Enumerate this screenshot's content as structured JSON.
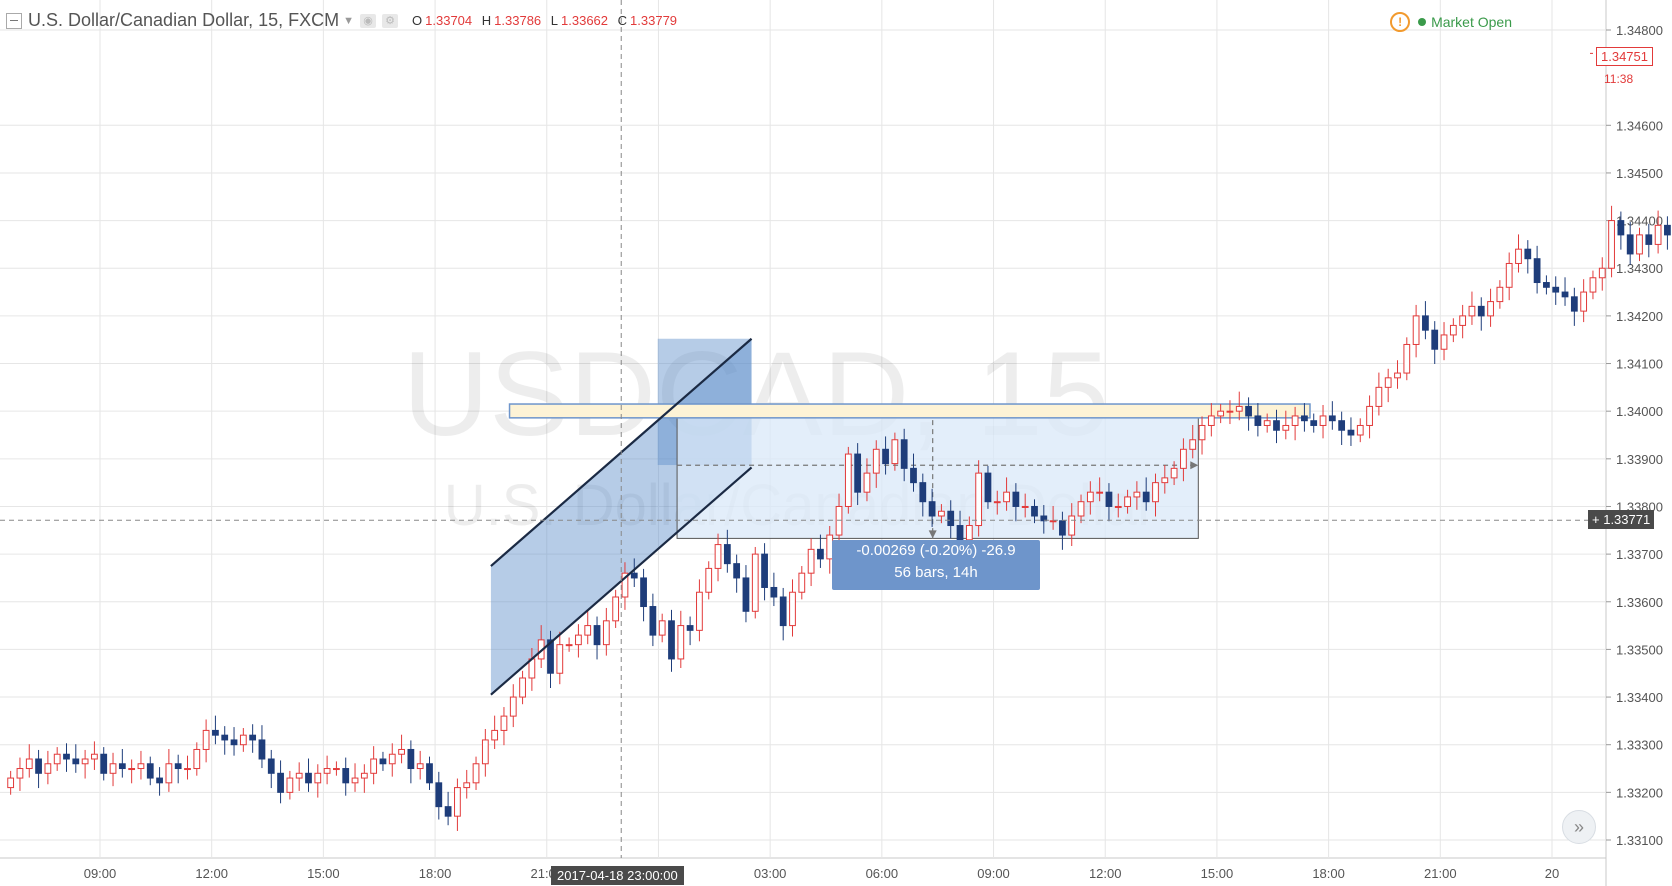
{
  "header": {
    "title": "U.S. Dollar/Canadian Dollar, 15, FXCM",
    "ohlc": {
      "o_label": "O",
      "o": "1.33704",
      "h_label": "H",
      "h": "1.33786",
      "l_label": "L",
      "l": "1.33662",
      "c_label": "C",
      "c": "1.33779"
    },
    "market_status": "Market Open"
  },
  "watermark": {
    "symbol": "USDCAD, 15",
    "name": "U.S. Dollar/Canadian Dollar"
  },
  "crosshair": {
    "time_label": "2017-04-18 23:00:00",
    "price_label": "1.33771"
  },
  "last_price": {
    "value": "1.34751",
    "countdown": "11:38"
  },
  "measure": {
    "line1": "-0.00269 (-0.20%) -26.9",
    "line2": "56 bars, 14h"
  },
  "colors": {
    "up": "#e23a3a",
    "down": "#1e3d7a",
    "grid": "#e6e6e6",
    "channel_fill": "#5d8ec9",
    "range_fill": "#d9e8f8",
    "resistance_fill": "#fdf3d6",
    "resistance_border": "#6e95cb"
  },
  "icons": {
    "collapse": "collapse-icon",
    "warning": "warning-icon",
    "scroll_forward": "double-chevron-right-icon"
  },
  "chart_data": {
    "type": "candlestick",
    "title": "U.S. Dollar/Canadian Dollar, 15, FXCM",
    "y_axis": {
      "ticks": [
        "1.34800",
        "1.34600",
        "1.34500",
        "1.34400",
        "1.34300",
        "1.34200",
        "1.34100",
        "1.34000",
        "1.33900",
        "1.33800",
        "1.33700",
        "1.33600",
        "1.33500",
        "1.33400",
        "1.33300",
        "1.33200",
        "1.33100"
      ],
      "range": [
        1.3308,
        1.3482
      ]
    },
    "x_axis": {
      "ticks": [
        "09:00",
        "12:00",
        "15:00",
        "18:00",
        "21:00",
        "00:00",
        "03:00",
        "06:00",
        "09:00",
        "12:00",
        "15:00",
        "18:00",
        "21:00",
        "20"
      ],
      "range_hours": [
        6.5,
        49.5
      ],
      "period_minutes": 15,
      "timezone_note": "April 18-20, 2017"
    },
    "series": [
      {
        "name": "USDCAD",
        "close": [
          1.3323,
          1.3325,
          1.3327,
          1.3324,
          1.3326,
          1.3328,
          1.3327,
          1.3326,
          1.3327,
          1.3328,
          1.3324,
          1.3326,
          1.3325,
          1.3325,
          1.3326,
          1.3323,
          1.3322,
          1.3326,
          1.3325,
          1.3325,
          1.3329,
          1.3333,
          1.3332,
          1.3331,
          1.333,
          1.3332,
          1.3331,
          1.3327,
          1.3324,
          1.332,
          1.3323,
          1.3324,
          1.3322,
          1.3324,
          1.3325,
          1.3325,
          1.3322,
          1.3323,
          1.3324,
          1.3327,
          1.3326,
          1.3328,
          1.3329,
          1.3325,
          1.3326,
          1.3322,
          1.3317,
          1.3315,
          1.3321,
          1.3322,
          1.3326,
          1.3331,
          1.3333,
          1.3336,
          1.334,
          1.3344,
          1.3348,
          1.3352,
          1.3345,
          1.3351,
          1.3351,
          1.3353,
          1.3355,
          1.3351,
          1.3356,
          1.3361,
          1.3366,
          1.3365,
          1.3359,
          1.3353,
          1.3356,
          1.3348,
          1.3355,
          1.3354,
          1.3362,
          1.3367,
          1.3372,
          1.3368,
          1.3365,
          1.3358,
          1.337,
          1.3363,
          1.3361,
          1.3355,
          1.3362,
          1.3366,
          1.3371,
          1.3369,
          1.3374,
          1.338,
          1.3391,
          1.3383,
          1.3387,
          1.3392,
          1.3389,
          1.3394,
          1.3388,
          1.3385,
          1.3381,
          1.3378,
          1.3379,
          1.3376,
          1.3373,
          1.3376,
          1.3387,
          1.3381,
          1.3381,
          1.3383,
          1.338,
          1.338,
          1.3378,
          1.3377,
          1.3377,
          1.3374,
          1.3378,
          1.3381,
          1.3383,
          1.3383,
          1.338,
          1.338,
          1.3382,
          1.3383,
          1.3381,
          1.3385,
          1.3386,
          1.3388,
          1.3392,
          1.3394,
          1.3397,
          1.3399,
          1.34,
          1.34,
          1.3401,
          1.3399,
          1.3397,
          1.3398,
          1.3396,
          1.3397,
          1.3399,
          1.3398,
          1.3397,
          1.3399,
          1.3398,
          1.3396,
          1.3395,
          1.3397,
          1.3401,
          1.3405,
          1.3407,
          1.3408,
          1.3414,
          1.342,
          1.3417,
          1.3413,
          1.3416,
          1.3418,
          1.342,
          1.3422,
          1.342,
          1.3423,
          1.3426,
          1.3431,
          1.3434,
          1.3432,
          1.3427,
          1.3426,
          1.3425,
          1.3424,
          1.3421,
          1.3425,
          1.3428,
          1.343,
          1.344,
          1.3437,
          1.3433,
          1.3437,
          1.3435,
          1.3439,
          1.3437,
          1.3441,
          1.3445,
          1.344,
          1.3439,
          1.3442,
          1.3447,
          1.3464,
          1.3471,
          1.3473,
          1.3469,
          1.3465,
          1.3471,
          1.3475
        ]
      }
    ],
    "drawings": {
      "ascending_channel": {
        "upper": [
          [
            19.5,
            1.33675
          ],
          [
            26.5,
            1.34152
          ]
        ],
        "lower": [
          [
            19.5,
            1.33405
          ],
          [
            26.5,
            1.33882
          ]
        ]
      },
      "channel_shaded_box": {
        "x": [
          19.5,
          26.5
        ],
        "y": [
          1.33405,
          1.34152
        ]
      },
      "resistance_zone": {
        "x": [
          20.0,
          41.5
        ],
        "y": [
          1.33986,
          1.34015
        ]
      },
      "measured_range": {
        "x": [
          24.5,
          38.5
        ],
        "y": [
          1.33733,
          1.34
        ],
        "change": "-0.00269 (-0.20%) -26.9",
        "bars": "56 bars, 14h"
      },
      "crosshair": {
        "x_hours": 23.0,
        "y_price": 1.33771
      }
    }
  }
}
